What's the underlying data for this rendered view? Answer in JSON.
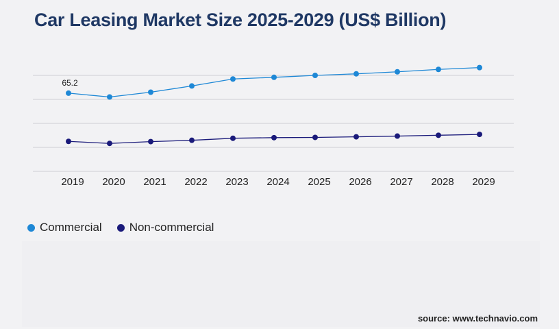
{
  "title": "Car Leasing Market Size 2025-2029 (US$ Billion)",
  "source": "source: www.technavio.com",
  "chart_data": {
    "type": "line",
    "title": "Car Leasing Market Size 2025-2029 (US$ Billion)",
    "x": [
      "2019",
      "2020",
      "2021",
      "2022",
      "2023",
      "2024",
      "2025",
      "2026",
      "2027",
      "2028",
      "2029"
    ],
    "ylim": [
      0,
      100
    ],
    "grid": true,
    "legend": "bottom-left",
    "series": [
      {
        "name": "Commercial",
        "color": "#1e88d6",
        "values": [
          65.2,
          62.0,
          66.0,
          71.2,
          77.0,
          78.4,
          80.0,
          81.3,
          83.0,
          85.0,
          86.5
        ],
        "data_labels": {
          "0": "65.2"
        }
      },
      {
        "name": "Non-commercial",
        "color": "#1a1a7a",
        "values": [
          25.0,
          23.3,
          24.8,
          25.9,
          27.6,
          28.1,
          28.3,
          28.8,
          29.4,
          30.1,
          30.8
        ]
      }
    ]
  }
}
